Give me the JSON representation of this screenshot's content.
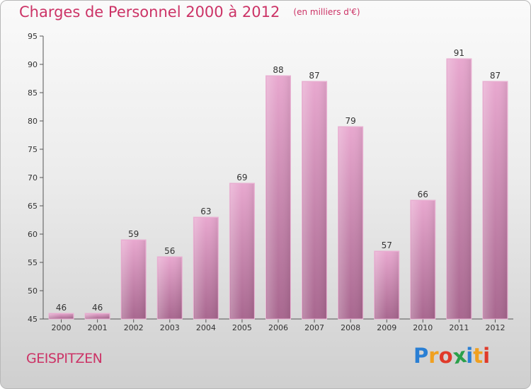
{
  "chart_data": {
    "type": "bar",
    "title": "Charges de Personnel 2000 à 2012",
    "subtitle": "(en milliers d'€)",
    "categories": [
      "2000",
      "2001",
      "2002",
      "2003",
      "2004",
      "2005",
      "2006",
      "2007",
      "2008",
      "2009",
      "2010",
      "2011",
      "2012"
    ],
    "values": [
      46,
      46,
      59,
      56,
      63,
      69,
      88,
      87,
      79,
      57,
      66,
      91,
      87
    ],
    "ylim": [
      45,
      95
    ],
    "yticks": [
      45,
      50,
      55,
      60,
      65,
      70,
      75,
      80,
      85,
      90,
      95
    ],
    "grid": false,
    "bar_color": "#d98fb8",
    "title_color": "#cc3366"
  },
  "place_name": "GEISPITZEN",
  "brand": {
    "letters": [
      "P",
      "r",
      "o",
      "x",
      "i",
      "t",
      "i"
    ],
    "colors": [
      "#2a7fd4",
      "#f0a020",
      "#e03a2a",
      "#2aa04a",
      "#2a7fd4",
      "#f0a020",
      "#e03a2a"
    ]
  }
}
